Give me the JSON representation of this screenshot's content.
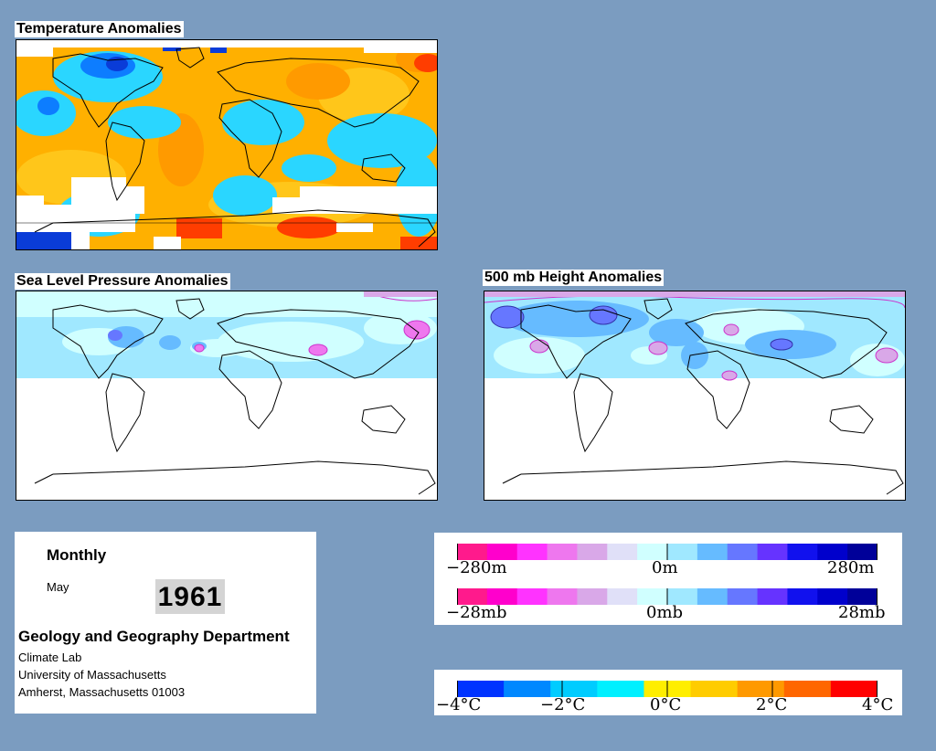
{
  "maps": {
    "temperature": {
      "title": "Temperature Anomalies"
    },
    "slp": {
      "title": "Sea Level Pressure Anomalies"
    },
    "height500": {
      "title": "500 mb Height Anomalies"
    }
  },
  "info": {
    "period": "Monthly",
    "month": "May",
    "year": "1961",
    "department": "Geology and Geography Department",
    "lab": "Climate Lab",
    "university": "University of Massachusetts",
    "address": "Amherst, Massachusetts 01003"
  },
  "legends": {
    "height": {
      "min": "−280m",
      "mid": "0m",
      "max": "280m"
    },
    "pressure": {
      "min": "−28mb",
      "mid": "0mb",
      "max": "28mb"
    },
    "temperature": {
      "labels": [
        "−4°C",
        "−2°C",
        "0°C",
        "2°C",
        "4°C"
      ]
    }
  },
  "colors": {
    "anomaly_scale": [
      "#ff1a8c",
      "#ff00cc",
      "#ff33ff",
      "#ee77ee",
      "#d9a8e8",
      "#e0e0f8",
      "#d0ffff",
      "#a0e8ff",
      "#66bbff",
      "#6677ff",
      "#6633ff",
      "#1111ee",
      "#0000cc",
      "#000099"
    ],
    "temperature_scale": [
      "#0033ff",
      "#0088ff",
      "#00ccff",
      "#00f0ff",
      "#ffee00",
      "#ffcc00",
      "#ff9900",
      "#ff6600",
      "#ff0000"
    ],
    "background": "#7b9cc0"
  }
}
